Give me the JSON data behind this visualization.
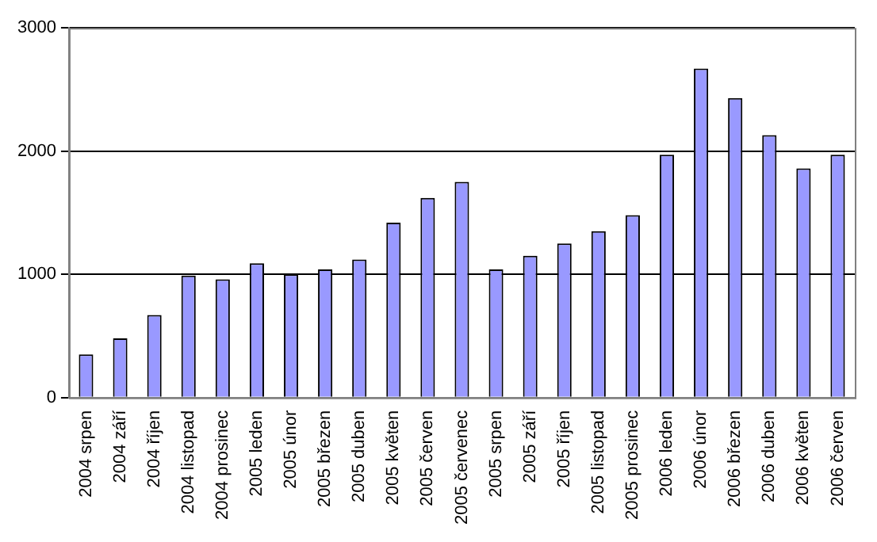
{
  "chart_data": {
    "type": "bar",
    "categories": [
      "2004 srpen",
      "2004 září",
      "2004 říjen",
      "2004 listopad",
      "2004 prosinec",
      "2005 leden",
      "2005 únor",
      "2005 březen",
      "2005 duben",
      "2005 květen",
      "2005 červen",
      "2005 červenec",
      "2005 srpen",
      "2005 září",
      "2005 říjen",
      "2005 listopad",
      "2005 prosinec",
      "2006 leden",
      "2006 únor",
      "2006 březen",
      "2006 duben",
      "2006 květen",
      "2006 červen"
    ],
    "values": [
      350,
      480,
      670,
      990,
      960,
      1090,
      1000,
      1040,
      1120,
      1420,
      1620,
      1750,
      1040,
      1150,
      1250,
      1350,
      1480,
      1970,
      2670,
      2430,
      2130,
      1860,
      1970
    ],
    "color": "#9999ff",
    "ylim": [
      0,
      3000
    ],
    "yticks": [
      0,
      1000,
      2000,
      3000
    ],
    "grid": "y"
  }
}
